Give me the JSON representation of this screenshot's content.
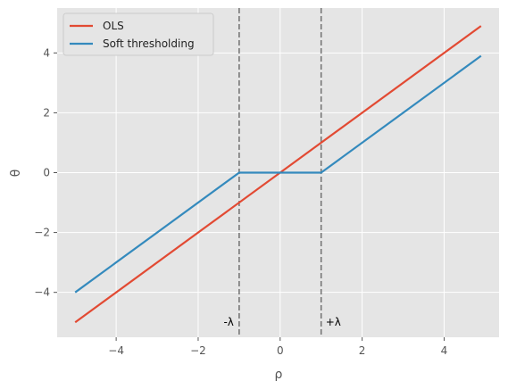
{
  "chart_data": {
    "type": "line",
    "xlabel": "ρ",
    "ylabel": "θ",
    "xlim": [
      -5.44,
      5.34
    ],
    "ylim": [
      -5.5,
      5.5
    ],
    "xticks": [
      -4,
      -2,
      0,
      2,
      4
    ],
    "yticks": [
      -4,
      -2,
      0,
      2,
      4
    ],
    "grid": true,
    "legend_position": "top-left",
    "series": [
      {
        "name": "OLS",
        "color": "#E24A33",
        "x": [
          -5,
          4.9
        ],
        "y": [
          -5,
          4.9
        ]
      },
      {
        "name": "Soft thresholding",
        "color": "#348ABD",
        "x": [
          -5,
          -1,
          1,
          4.9
        ],
        "y": [
          -4,
          0,
          0,
          3.9
        ]
      }
    ],
    "vlines": [
      {
        "x": -1,
        "color": "#777777",
        "style": "dashed",
        "label": "-λ"
      },
      {
        "x": 1,
        "color": "#777777",
        "style": "dashed",
        "label": "+λ"
      }
    ],
    "annotation_y": -5
  }
}
